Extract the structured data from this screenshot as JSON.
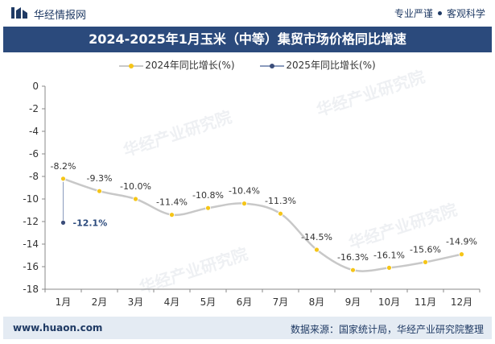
{
  "header": {
    "brand": "华经情报网",
    "tag1": "专业严谨",
    "tag2": "客观科学"
  },
  "title": "2024-2025年1月玉米（中等）集贸市场价格同比增速",
  "legend": {
    "s1": "2024年同比增长(%)",
    "s2": "2025年同比增长(%)"
  },
  "footer": {
    "url": "www.huaon.com",
    "source": "数据来源：国家统计局，华经产业研究院整理"
  },
  "watermark": "华经产业研究院",
  "colors": {
    "title_bg": "#2b4a7c",
    "s1_line": "#c8c8c8",
    "s1_marker": "#f5c518",
    "s2_line": "#8a9bbd",
    "s2_marker": "#3b4d7a",
    "footer_bg": "#e4ebf3"
  },
  "chart_data": {
    "type": "line",
    "title": "2024-2025年1月玉米（中等）集贸市场价格同比增速",
    "categories": [
      "1月",
      "2月",
      "3月",
      "4月",
      "5月",
      "6月",
      "7月",
      "8月",
      "9月",
      "10月",
      "11月",
      "12月"
    ],
    "series": [
      {
        "name": "2024年同比增长(%)",
        "values": [
          -8.2,
          -9.3,
          -10.0,
          -11.4,
          -10.8,
          -10.4,
          -11.3,
          -14.5,
          -16.3,
          -16.1,
          -15.6,
          -14.9
        ],
        "labels": [
          "-8.2%",
          "-9.3%",
          "-10.0%",
          "-11.4%",
          "-10.8%",
          "-10.4%",
          "-11.3%",
          "-14.5%",
          "-16.3%",
          "-16.1%",
          "-15.6%",
          "-14.9%"
        ]
      },
      {
        "name": "2025年同比增长(%)",
        "values": [
          -12.1,
          null,
          null,
          null,
          null,
          null,
          null,
          null,
          null,
          null,
          null,
          null
        ],
        "labels": [
          "-12.1%",
          "",
          "",
          "",
          "",
          "",
          "",
          "",
          "",
          "",
          "",
          ""
        ]
      }
    ],
    "yticks": [
      0,
      -2,
      -4,
      -6,
      -8,
      -10,
      -12,
      -14,
      -16,
      -18
    ],
    "ylim": [
      -18,
      0
    ],
    "grid": false,
    "legend_position": "top"
  }
}
